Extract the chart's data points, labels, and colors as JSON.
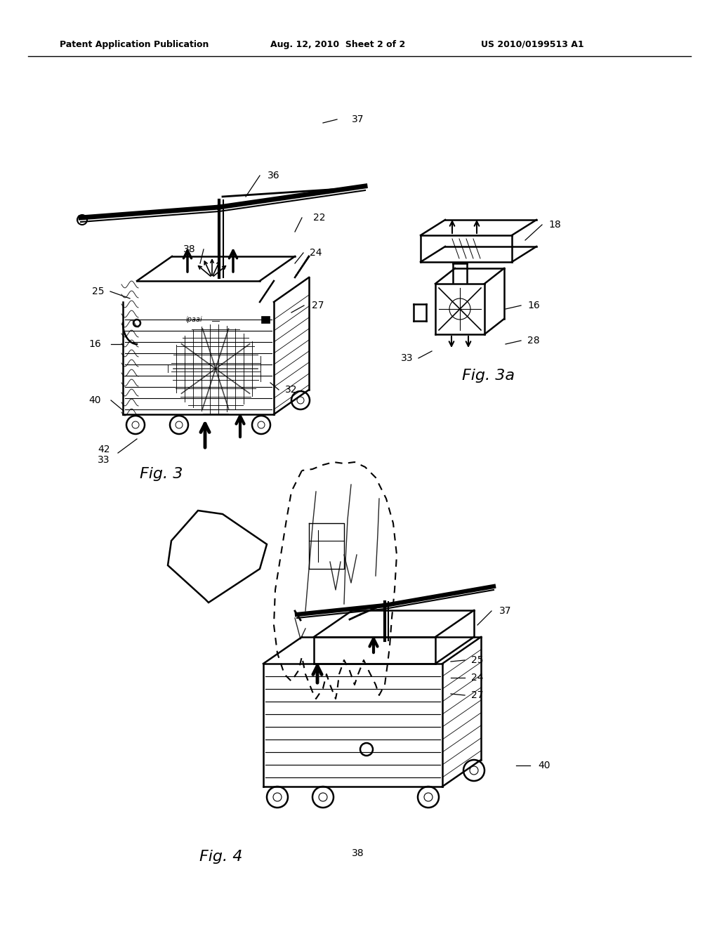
{
  "bg_color": "#ffffff",
  "header_left": "Patent Application Publication",
  "header_mid": "Aug. 12, 2010  Sheet 2 of 2",
  "header_right": "US 2010/0199513 A1",
  "fig3_label": "Fig. 3",
  "fig3a_label": "Fig. 3a",
  "fig4_label": "Fig. 4",
  "text_color": "#000000",
  "line_color": "#000000"
}
